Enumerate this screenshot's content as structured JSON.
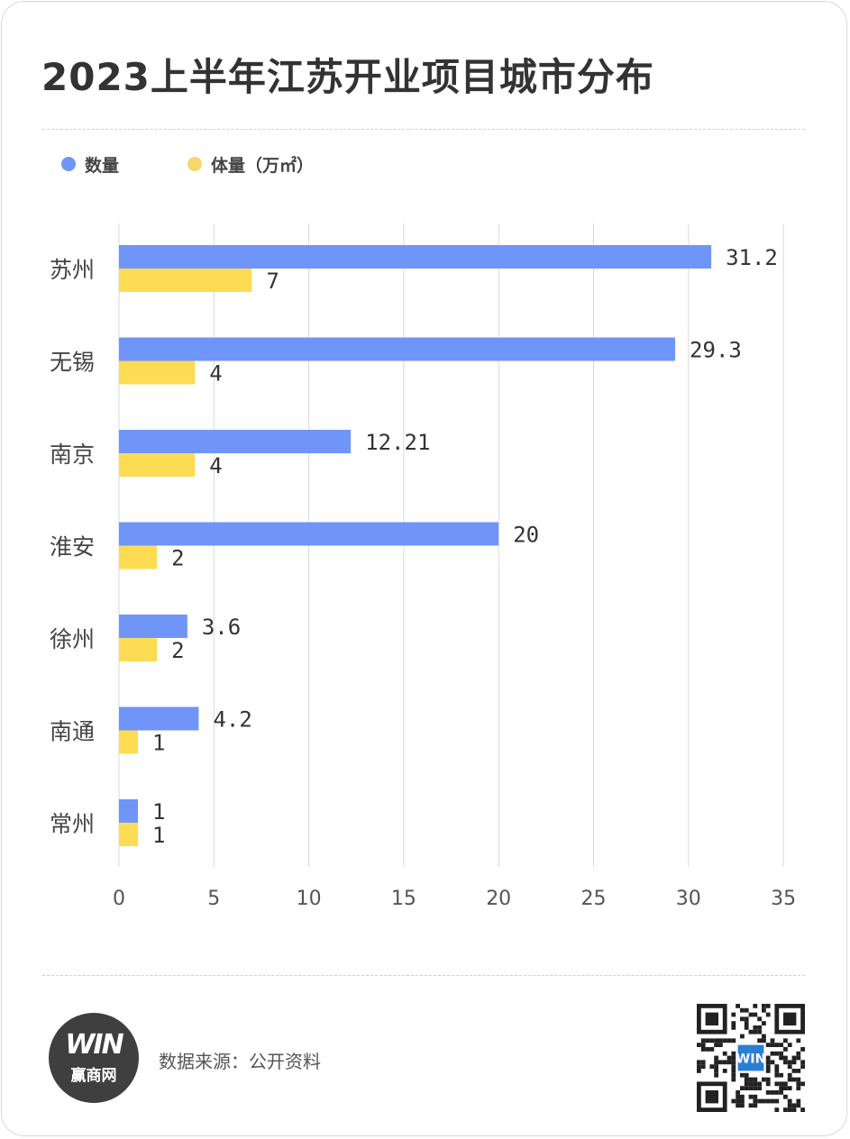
{
  "title": "2023上半年江苏开业项目城市分布",
  "legend": [
    {
      "label": "数量",
      "color": "#6f95f8"
    },
    {
      "label": "体量（万㎡）",
      "color": "#f7d66b"
    }
  ],
  "chart_data": {
    "type": "bar",
    "orientation": "horizontal",
    "categories": [
      "苏州",
      "无锡",
      "南京",
      "淮安",
      "徐州",
      "南通",
      "常州"
    ],
    "series": [
      {
        "name": "数量",
        "color": "#6f95f8",
        "values": [
          31.2,
          29.3,
          12.21,
          20,
          3.6,
          4.2,
          1
        ],
        "labels": [
          "31.2",
          "29.3",
          "12.21",
          "20",
          "3.6",
          "4.2",
          "1"
        ]
      },
      {
        "name": "体量（万㎡）",
        "color": "#fddc54",
        "values": [
          7,
          4,
          4,
          2,
          2,
          1,
          1
        ],
        "labels": [
          "7",
          "4",
          "4",
          "2",
          "2",
          "1",
          "1"
        ]
      }
    ],
    "xlim": [
      0,
      35
    ],
    "xticks": [
      "0",
      "5",
      "10",
      "15",
      "20",
      "25",
      "30",
      "35"
    ],
    "grid": true,
    "legend_position": "top-left",
    "title": "2023上半年江苏开业项目城市分布",
    "xlabel": "",
    "ylabel": ""
  },
  "footer": {
    "logo_mark": "WIN",
    "logo_name": "赢商网",
    "source": "数据来源：公开资料",
    "qr_icon": "qr-code-icon"
  }
}
